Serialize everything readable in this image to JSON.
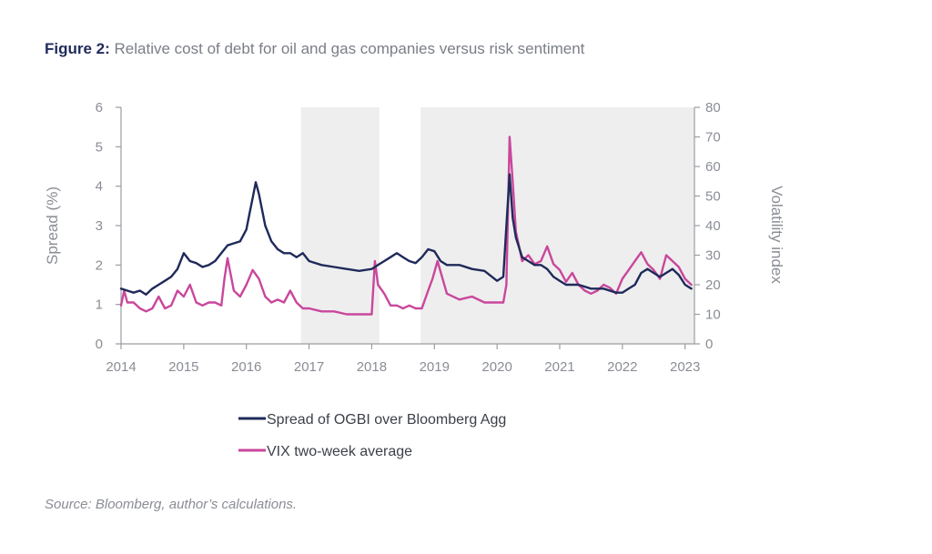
{
  "figure": {
    "label": "Figure 2:",
    "title": "Relative cost of debt for oil and gas companies versus risk sentiment"
  },
  "source": "Source: Bloomberg, author’s calculations.",
  "chart_data": {
    "type": "line",
    "title": "Relative cost of debt for oil and gas companies versus risk sentiment",
    "xlabel": "",
    "ylabel": "Spread (%)",
    "y2label": "Volatility index",
    "xlim": [
      2014,
      2023.15
    ],
    "ylim": [
      0,
      6
    ],
    "y2lim": [
      0,
      80
    ],
    "x_ticks": [
      "2014",
      "2015",
      "2016",
      "2017",
      "2018",
      "2019",
      "2020",
      "2021",
      "2022",
      "2023"
    ],
    "y_ticks": [
      "0",
      "1",
      "2",
      "3",
      "4",
      "5",
      "6"
    ],
    "y2_ticks": [
      "0",
      "10",
      "20",
      "30",
      "40",
      "50",
      "60",
      "70",
      "80"
    ],
    "grid": false,
    "legend_position": "bottom",
    "shaded_periods": [
      [
        2016.87,
        2018.12
      ],
      [
        2018.78,
        2023.15
      ]
    ],
    "series": [
      {
        "name": "Spread of OGBI over Bloomberg Agg",
        "axis": "left",
        "color": "#1f2a5a",
        "x": [
          2014.0,
          2014.1,
          2014.2,
          2014.3,
          2014.4,
          2014.5,
          2014.6,
          2014.7,
          2014.8,
          2014.9,
          2015.0,
          2015.1,
          2015.2,
          2015.3,
          2015.4,
          2015.5,
          2015.6,
          2015.7,
          2015.8,
          2015.9,
          2016.0,
          2016.05,
          2016.1,
          2016.15,
          2016.2,
          2016.3,
          2016.4,
          2016.5,
          2016.6,
          2016.7,
          2016.8,
          2016.9,
          2017.0,
          2017.2,
          2017.4,
          2017.6,
          2017.8,
          2018.0,
          2018.1,
          2018.2,
          2018.3,
          2018.4,
          2018.5,
          2018.6,
          2018.7,
          2018.8,
          2018.9,
          2019.0,
          2019.1,
          2019.2,
          2019.4,
          2019.6,
          2019.8,
          2020.0,
          2020.1,
          2020.15,
          2020.2,
          2020.25,
          2020.3,
          2020.4,
          2020.5,
          2020.6,
          2020.7,
          2020.8,
          2020.9,
          2021.0,
          2021.1,
          2021.2,
          2021.3,
          2021.5,
          2021.7,
          2021.9,
          2022.0,
          2022.1,
          2022.2,
          2022.3,
          2022.4,
          2022.5,
          2022.6,
          2022.7,
          2022.8,
          2022.9,
          2023.0,
          2023.1
        ],
        "y": [
          1.4,
          1.35,
          1.3,
          1.35,
          1.25,
          1.4,
          1.5,
          1.6,
          1.7,
          1.9,
          2.3,
          2.1,
          2.05,
          1.95,
          2.0,
          2.1,
          2.3,
          2.5,
          2.55,
          2.6,
          2.9,
          3.3,
          3.7,
          4.1,
          3.8,
          3.0,
          2.6,
          2.4,
          2.3,
          2.3,
          2.2,
          2.3,
          2.1,
          2.0,
          1.95,
          1.9,
          1.85,
          1.9,
          2.0,
          2.1,
          2.2,
          2.3,
          2.2,
          2.1,
          2.05,
          2.2,
          2.4,
          2.35,
          2.1,
          2.0,
          2.0,
          1.9,
          1.85,
          1.6,
          1.7,
          3.0,
          4.3,
          3.2,
          2.7,
          2.2,
          2.1,
          2.0,
          2.0,
          1.9,
          1.7,
          1.6,
          1.5,
          1.5,
          1.5,
          1.4,
          1.4,
          1.3,
          1.3,
          1.4,
          1.5,
          1.8,
          1.9,
          1.8,
          1.7,
          1.8,
          1.9,
          1.75,
          1.5,
          1.4
        ]
      },
      {
        "name": "VIX two-week average",
        "axis": "right",
        "color": "#c9479c",
        "x": [
          2014.0,
          2014.05,
          2014.1,
          2014.2,
          2014.3,
          2014.4,
          2014.5,
          2014.6,
          2014.7,
          2014.8,
          2014.9,
          2015.0,
          2015.1,
          2015.2,
          2015.3,
          2015.4,
          2015.5,
          2015.6,
          2015.65,
          2015.7,
          2015.8,
          2015.9,
          2016.0,
          2016.1,
          2016.2,
          2016.3,
          2016.4,
          2016.5,
          2016.6,
          2016.7,
          2016.8,
          2016.9,
          2017.0,
          2017.2,
          2017.4,
          2017.6,
          2017.8,
          2018.0,
          2018.05,
          2018.1,
          2018.2,
          2018.3,
          2018.4,
          2018.5,
          2018.6,
          2018.7,
          2018.8,
          2018.9,
          2018.97,
          2019.05,
          2019.2,
          2019.4,
          2019.6,
          2019.8,
          2020.0,
          2020.1,
          2020.15,
          2020.2,
          2020.25,
          2020.3,
          2020.4,
          2020.5,
          2020.6,
          2020.7,
          2020.8,
          2020.9,
          2021.0,
          2021.1,
          2021.2,
          2021.3,
          2021.4,
          2021.5,
          2021.6,
          2021.7,
          2021.8,
          2021.9,
          2022.0,
          2022.1,
          2022.2,
          2022.3,
          2022.4,
          2022.5,
          2022.6,
          2022.7,
          2022.8,
          2022.9,
          2023.0,
          2023.1
        ],
        "y": [
          13,
          18,
          14,
          14,
          12,
          11,
          12,
          16,
          12,
          13,
          18,
          16,
          20,
          14,
          13,
          14,
          14,
          13,
          22,
          29,
          18,
          16,
          20,
          25,
          22,
          16,
          14,
          15,
          14,
          18,
          14,
          12,
          12,
          11,
          11,
          10,
          10,
          10,
          28,
          20,
          17,
          13,
          13,
          12,
          13,
          12,
          12,
          18,
          22,
          28,
          17,
          15,
          16,
          14,
          14,
          14,
          20,
          70,
          55,
          38,
          28,
          30,
          27,
          28,
          33,
          27,
          25,
          21,
          24,
          20,
          18,
          17,
          18,
          20,
          19,
          17,
          22,
          25,
          28,
          31,
          27,
          25,
          22,
          30,
          28,
          26,
          22,
          20
        ]
      }
    ]
  }
}
